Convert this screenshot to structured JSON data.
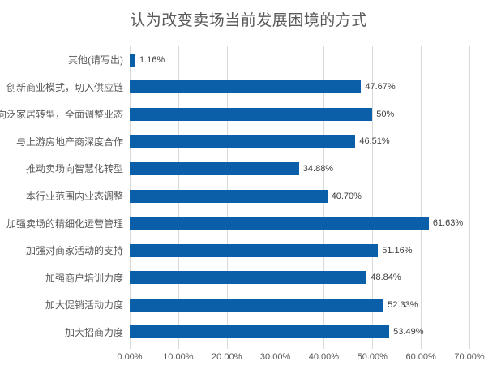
{
  "chart_data": {
    "type": "bar",
    "orientation": "horizontal",
    "title": "认为改变卖场当前发展困境的方式",
    "categories": [
      "其他(请写出)",
      "创新商业模式，切入供应链",
      "向泛家居转型，全面调整业态",
      "与上游房地产商深度合作",
      "推动卖场向智慧化转型",
      "本行业范围内业态调整",
      "加强卖场的精细化运营管理",
      "加强对商家活动的支持",
      "加强商户培训力度",
      "加大促销活动力度",
      "加大招商力度"
    ],
    "values": [
      1.16,
      47.67,
      50,
      46.51,
      34.88,
      40.7,
      61.63,
      51.16,
      48.84,
      52.33,
      53.49
    ],
    "value_labels": [
      "1.16%",
      "47.67%",
      "50%",
      "46.51%",
      "34.88%",
      "40.70%",
      "61.63%",
      "51.16%",
      "48.84%",
      "52.33%",
      "53.49%"
    ],
    "x_tick_labels": [
      "0.00%",
      "10.00%",
      "20.00%",
      "30.00%",
      "40.00%",
      "50.00%",
      "60.00%",
      "70.00%"
    ],
    "xlim": [
      0,
      70
    ],
    "xlabel": "",
    "ylabel": "",
    "grid": "vertical",
    "legend": "none",
    "bar_color": "#0b5ea8",
    "gridline_color": "#d9d9d9",
    "title_color": "#595959",
    "label_color": "#595959",
    "value_color": "#404040"
  }
}
